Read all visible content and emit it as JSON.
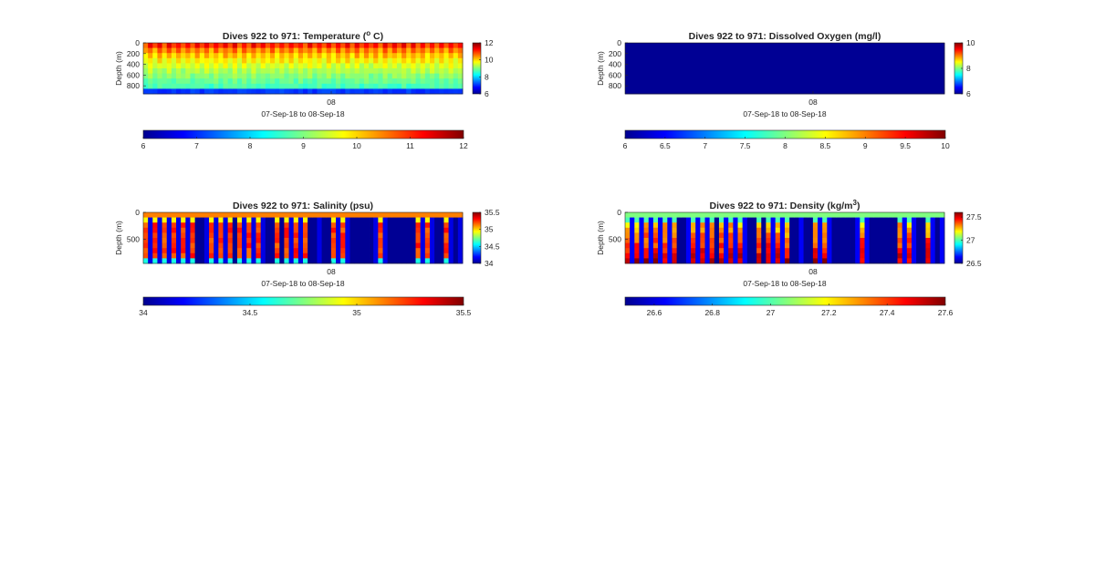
{
  "figure": {
    "background": "#ffffff",
    "colormap": "jet"
  },
  "chart_data": [
    {
      "type": "heatmap",
      "title_main": "Dives 922 to 971: Temperature (",
      "title_sup": "o",
      "title_end": " C)",
      "ylabel": "Depth (m)",
      "yticks": [
        "0",
        "200",
        "400",
        "600",
        "800"
      ],
      "ylim": [
        0,
        950
      ],
      "ytick_values": [
        0,
        200,
        400,
        600,
        800
      ],
      "xtick": "08",
      "xlabel": "07-Sep-18 to 08-Sep-18",
      "pattern": "temperature",
      "columns": 68,
      "clim": [
        6,
        12
      ],
      "cbar_ticks": [
        "6",
        "8",
        "10",
        "12"
      ],
      "cbar_tick_values": [
        6,
        8,
        10,
        12
      ],
      "hbar_ticks": [
        "6",
        "7",
        "8",
        "9",
        "10",
        "11",
        "12"
      ],
      "hbar_tick_values": [
        6,
        7,
        8,
        9,
        10,
        11,
        12
      ]
    },
    {
      "type": "heatmap",
      "title_main": "Dives 922 to 971: Dissolved Oxygen (mg/l)",
      "title_sup": "",
      "title_end": "",
      "ylabel": "Depth (m)",
      "yticks": [
        "0",
        "200",
        "400",
        "600",
        "800"
      ],
      "ylim": [
        0,
        950
      ],
      "ytick_values": [
        0,
        200,
        400,
        600,
        800
      ],
      "xtick": "08",
      "xlabel": "07-Sep-18 to 08-Sep-18",
      "pattern": "uniform",
      "columns": 1,
      "clim": [
        6,
        10
      ],
      "cbar_ticks": [
        "6",
        "8",
        "10"
      ],
      "cbar_tick_values": [
        6,
        8,
        10
      ],
      "hbar_ticks": [
        "6",
        "6.5",
        "7",
        "7.5",
        "8",
        "8.5",
        "9",
        "9.5",
        "10"
      ],
      "hbar_tick_values": [
        6,
        6.5,
        7,
        7.5,
        8,
        8.5,
        9,
        9.5,
        10
      ]
    },
    {
      "type": "heatmap",
      "title_main": "Dives 922 to 971: Salinity (psu)",
      "title_sup": "",
      "title_end": "",
      "ylabel": "Depth (m)",
      "yticks": [
        "0",
        "500"
      ],
      "ylim": [
        0,
        950
      ],
      "ytick_values": [
        0,
        500
      ],
      "xtick": "08",
      "xlabel": "07-Sep-18 to 08-Sep-18",
      "pattern": "salinity",
      "columns": 68,
      "clim": [
        34,
        35.5
      ],
      "cbar_ticks": [
        "34",
        "34.5",
        "35",
        "35.5"
      ],
      "cbar_tick_values": [
        34,
        34.5,
        35,
        35.5
      ],
      "hbar_ticks": [
        "34",
        "34.5",
        "35",
        "35.5"
      ],
      "hbar_tick_values": [
        34,
        34.5,
        35,
        35.5
      ]
    },
    {
      "type": "heatmap",
      "title_main": "Dives 922 to 971: Density (kg/m",
      "title_sup": "3",
      "title_end": ")",
      "ylabel": "Depth (m)",
      "yticks": [
        "0",
        "500"
      ],
      "ylim": [
        0,
        950
      ],
      "ytick_values": [
        0,
        500
      ],
      "xtick": "08",
      "xlabel": "07-Sep-18 to 08-Sep-18",
      "pattern": "density",
      "columns": 68,
      "clim": [
        26.5,
        27.6
      ],
      "cbar_ticks": [
        "26.5",
        "27",
        "27.5"
      ],
      "cbar_tick_values": [
        26.5,
        27,
        27.5
      ],
      "hbar_ticks": [
        "26.6",
        "26.8",
        "27",
        "27.2",
        "27.4",
        "27.6"
      ],
      "hbar_tick_values": [
        26.6,
        26.8,
        27,
        27.2,
        27.4,
        27.6
      ]
    }
  ]
}
